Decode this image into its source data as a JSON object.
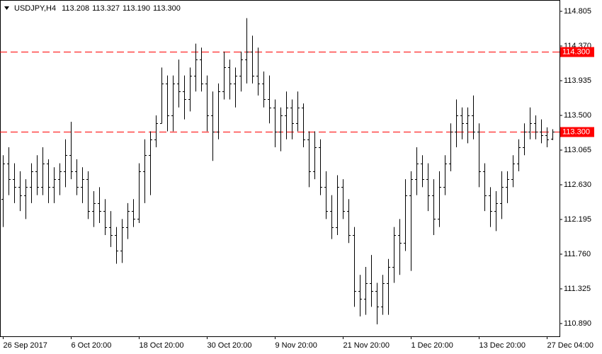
{
  "chart_data": {
    "type": "ohlc",
    "title": "USDJPY,H4",
    "quote": [
      "113.208",
      "113.327",
      "113.190",
      "113.300"
    ],
    "categories": [
      "26 Sep 2017",
      null,
      null,
      null,
      null,
      null,
      null,
      null,
      null,
      null,
      null,
      null,
      "6 Oct 20:00",
      null,
      null,
      null,
      null,
      null,
      null,
      null,
      null,
      null,
      null,
      null,
      "18 Oct 20:00",
      null,
      null,
      null,
      null,
      null,
      null,
      null,
      null,
      null,
      null,
      null,
      "30 Oct 20:00",
      null,
      null,
      null,
      null,
      null,
      null,
      null,
      null,
      null,
      null,
      null,
      "9 Nov 20:00",
      null,
      null,
      null,
      null,
      null,
      null,
      null,
      null,
      null,
      null,
      null,
      "21 Nov 20:00",
      null,
      null,
      null,
      null,
      null,
      null,
      null,
      null,
      null,
      null,
      null,
      "1 Dec 20:00",
      null,
      null,
      null,
      null,
      null,
      null,
      null,
      null,
      null,
      null,
      null,
      "13 Dec 20:00",
      null,
      null,
      null,
      null,
      null,
      null,
      null,
      null,
      null,
      null,
      null,
      "27 Dec 04:00",
      null
    ],
    "open": [
      112.45,
      112.9,
      112.7,
      112.6,
      112.5,
      112.6,
      112.8,
      112.6,
      112.9,
      112.6,
      112.7,
      112.8,
      113.0,
      112.8,
      112.6,
      112.7,
      112.3,
      112.4,
      112.3,
      112.1,
      112.0,
      111.8,
      112.1,
      112.3,
      112.2,
      112.8,
      113.0,
      113.2,
      113.4,
      113.9,
      113.5,
      113.9,
      113.8,
      113.7,
      114.0,
      114.2,
      113.9,
      113.5,
      113.3,
      113.8,
      114.1,
      113.9,
      114.0,
      114.2,
      114.3,
      114.0,
      113.9,
      113.7,
      113.6,
      113.3,
      113.5,
      113.6,
      113.4,
      113.6,
      113.2,
      112.8,
      113.1,
      112.6,
      112.3,
      112.1,
      112.6,
      112.3,
      112.0,
      111.3,
      111.2,
      111.4,
      111.3,
      111.1,
      111.4,
      111.6,
      112.0,
      111.9,
      112.5,
      112.7,
      112.9,
      112.7,
      112.5,
      112.2,
      112.6,
      112.9,
      113.3,
      113.5,
      113.4,
      113.5,
      113.3,
      112.8,
      112.5,
      112.3,
      112.4,
      112.6,
      112.7,
      112.9,
      113.1,
      113.3,
      113.4,
      113.3,
      113.25,
      113.208
    ],
    "high": [
      113.0,
      113.1,
      112.9,
      112.8,
      112.7,
      112.9,
      113.0,
      113.1,
      112.95,
      112.85,
      112.9,
      113.2,
      113.42,
      112.95,
      112.85,
      112.8,
      112.55,
      112.6,
      112.45,
      112.3,
      112.1,
      112.2,
      112.4,
      112.45,
      112.9,
      113.2,
      113.3,
      113.5,
      114.1,
      114.0,
      114.0,
      114.2,
      114.0,
      114.1,
      114.4,
      114.35,
      114.0,
      113.8,
      113.9,
      114.3,
      114.2,
      114.1,
      114.3,
      114.72,
      114.5,
      114.35,
      114.05,
      114.0,
      113.7,
      113.6,
      113.8,
      113.7,
      113.8,
      113.65,
      113.3,
      113.3,
      113.2,
      112.8,
      112.5,
      112.75,
      112.7,
      112.45,
      112.1,
      111.5,
      111.6,
      111.75,
      111.4,
      111.5,
      111.7,
      112.1,
      112.2,
      112.7,
      112.8,
      113.1,
      113.0,
      112.9,
      112.7,
      112.8,
      113.0,
      113.4,
      113.7,
      113.6,
      113.6,
      113.75,
      113.4,
      112.9,
      112.6,
      112.55,
      112.8,
      112.8,
      113.0,
      113.2,
      113.4,
      113.6,
      113.5,
      113.45,
      113.35,
      113.327
    ],
    "low": [
      112.1,
      112.5,
      112.4,
      112.3,
      112.2,
      112.4,
      112.5,
      112.5,
      112.4,
      112.4,
      112.5,
      112.6,
      112.7,
      112.5,
      112.4,
      112.2,
      112.1,
      112.15,
      112.0,
      111.85,
      111.64,
      111.65,
      111.95,
      112.1,
      112.15,
      112.4,
      112.5,
      113.1,
      113.4,
      113.3,
      113.3,
      113.6,
      113.45,
      113.55,
      113.8,
      113.8,
      113.3,
      112.93,
      113.2,
      113.7,
      113.7,
      113.6,
      113.8,
      113.9,
      113.9,
      113.75,
      113.6,
      113.4,
      113.1,
      113.05,
      113.2,
      113.2,
      113.3,
      113.1,
      112.6,
      112.7,
      112.5,
      112.2,
      111.95,
      112.0,
      112.2,
      111.9,
      111.1,
      110.98,
      111.0,
      111.1,
      110.88,
      111.0,
      111.0,
      111.4,
      111.5,
      111.8,
      111.55,
      112.5,
      112.6,
      112.3,
      112.0,
      112.1,
      112.5,
      112.8,
      113.1,
      113.2,
      113.15,
      113.2,
      112.6,
      112.3,
      112.1,
      112.05,
      112.2,
      112.4,
      112.6,
      112.8,
      113.0,
      113.2,
      113.2,
      113.15,
      113.1,
      113.19
    ],
    "close": [
      112.9,
      112.7,
      112.6,
      112.5,
      112.6,
      112.8,
      112.6,
      112.9,
      112.6,
      112.7,
      112.8,
      113.0,
      112.8,
      112.6,
      112.7,
      112.3,
      112.4,
      112.3,
      112.1,
      112.0,
      111.8,
      112.1,
      112.3,
      112.2,
      112.8,
      113.0,
      113.2,
      113.4,
      113.9,
      113.5,
      113.9,
      113.8,
      113.7,
      114.0,
      114.2,
      113.9,
      113.5,
      113.3,
      113.8,
      114.1,
      113.9,
      114.0,
      114.2,
      114.3,
      114.0,
      113.9,
      113.7,
      113.6,
      113.3,
      113.5,
      113.6,
      113.4,
      113.6,
      113.2,
      112.8,
      113.1,
      112.6,
      112.3,
      112.1,
      112.6,
      112.3,
      112.0,
      111.3,
      111.2,
      111.4,
      111.3,
      111.1,
      111.4,
      111.6,
      112.0,
      111.9,
      112.5,
      112.7,
      112.9,
      112.7,
      112.5,
      112.2,
      112.6,
      112.9,
      113.3,
      113.5,
      113.4,
      113.5,
      113.3,
      112.8,
      112.5,
      112.3,
      112.4,
      112.6,
      112.7,
      112.9,
      113.1,
      113.3,
      113.4,
      113.3,
      113.25,
      113.2,
      113.3
    ],
    "color": "#000000",
    "ylim": [
      110.73,
      114.947
    ],
    "yticks": [
      114.805,
      {
        "value": 114.37,
        "label": "114.370"
      },
      113.935,
      {
        "value": 113.5,
        "label": "113.500"
      },
      113.065,
      {
        "value": 112.63,
        "label": "112.630"
      },
      112.195,
      {
        "value": 111.76,
        "label": "111.760"
      },
      111.325,
      {
        "value": 110.89,
        "label": "110.890"
      }
    ],
    "levels": [
      {
        "value": 114.3,
        "label": "114.300"
      },
      {
        "value": 113.3,
        "label": "113.300"
      }
    ],
    "level_color": "#ff0000"
  }
}
